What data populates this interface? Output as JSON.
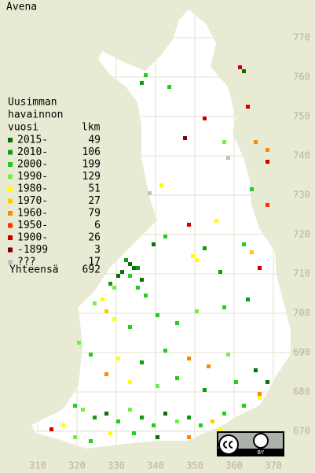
{
  "map": {
    "title": "Avena",
    "legend": {
      "heading": [
        "Uusimman",
        "havainnon",
        "vuosi"
      ],
      "count_heading": "lkm",
      "rows": [
        {
          "label": "2015-",
          "count": 49,
          "color": "#0a6e0a"
        },
        {
          "label": "2010-",
          "count": 106,
          "color": "#109c10"
        },
        {
          "label": "2000-",
          "count": 199,
          "color": "#22cc22"
        },
        {
          "label": "1990-",
          "count": 129,
          "color": "#77ee44"
        },
        {
          "label": "1980-",
          "count": 51,
          "color": "#ffff00"
        },
        {
          "label": "1970-",
          "count": 27,
          "color": "#ffcc00"
        },
        {
          "label": "1960-",
          "count": 79,
          "color": "#ff8800"
        },
        {
          "label": "1950-",
          "count": 6,
          "color": "#ff3300"
        },
        {
          "label": "1900-",
          "count": 26,
          "color": "#cc0000"
        },
        {
          "label": "-1899",
          "count": 3,
          "color": "#800000"
        },
        {
          "label": "???",
          "count": 17,
          "color": "#c0c0c0"
        }
      ],
      "total_label": "Yhteensä",
      "total": 692
    },
    "y_labels": [
      770,
      760,
      750,
      740,
      730,
      720,
      710,
      700,
      690,
      680,
      670
    ],
    "x_labels": [
      310,
      320,
      330,
      340,
      350,
      360,
      370
    ],
    "license": "BY",
    "squares": [
      [
        361,
        762,
        8
      ],
      [
        362,
        761,
        0
      ],
      [
        336,
        758,
        1
      ],
      [
        337,
        760,
        2
      ],
      [
        343,
        757,
        2
      ],
      [
        363,
        752,
        8
      ],
      [
        352,
        749,
        8
      ],
      [
        347,
        744,
        9
      ],
      [
        357,
        743,
        3
      ],
      [
        368,
        741,
        6
      ],
      [
        365,
        743,
        6
      ],
      [
        358,
        739,
        10
      ],
      [
        368,
        738,
        8
      ],
      [
        338,
        730,
        10
      ],
      [
        341,
        732,
        4
      ],
      [
        364,
        731,
        2
      ],
      [
        368,
        727,
        7
      ],
      [
        355,
        723,
        4
      ],
      [
        348,
        722,
        8
      ],
      [
        339,
        717,
        0
      ],
      [
        342,
        719,
        2
      ],
      [
        349,
        714,
        4
      ],
      [
        350,
        713,
        4
      ],
      [
        352,
        716,
        1
      ],
      [
        362,
        717,
        2
      ],
      [
        366,
        711,
        8
      ],
      [
        356,
        710,
        1
      ],
      [
        364,
        715,
        5
      ],
      [
        332,
        713,
        1
      ],
      [
        333,
        712,
        0
      ],
      [
        334,
        711,
        0
      ],
      [
        335,
        711,
        1
      ],
      [
        331,
        710,
        0
      ],
      [
        330,
        709,
        0
      ],
      [
        333,
        709,
        2
      ],
      [
        336,
        708,
        0
      ],
      [
        328,
        707,
        1
      ],
      [
        329,
        706,
        3
      ],
      [
        335,
        706,
        2
      ],
      [
        337,
        704,
        2
      ],
      [
        326,
        703,
        4
      ],
      [
        324,
        702,
        3
      ],
      [
        327,
        700,
        5
      ],
      [
        329,
        698,
        4
      ],
      [
        333,
        696,
        2
      ],
      [
        340,
        699,
        2
      ],
      [
        345,
        697,
        2
      ],
      [
        350,
        700,
        3
      ],
      [
        357,
        701,
        2
      ],
      [
        363,
        703,
        1
      ],
      [
        320,
        692,
        3
      ],
      [
        323,
        689,
        2
      ],
      [
        330,
        688,
        4
      ],
      [
        336,
        687,
        1
      ],
      [
        342,
        690,
        2
      ],
      [
        348,
        688,
        6
      ],
      [
        353,
        686,
        6
      ],
      [
        358,
        689,
        3
      ],
      [
        365,
        685,
        0
      ],
      [
        327,
        684,
        6
      ],
      [
        333,
        682,
        4
      ],
      [
        340,
        681,
        3
      ],
      [
        345,
        683,
        2
      ],
      [
        352,
        680,
        1
      ],
      [
        360,
        682,
        2
      ],
      [
        366,
        679,
        6
      ],
      [
        319,
        676,
        2
      ],
      [
        321,
        675,
        3
      ],
      [
        324,
        673,
        1
      ],
      [
        327,
        674,
        0
      ],
      [
        330,
        672,
        2
      ],
      [
        333,
        675,
        3
      ],
      [
        336,
        673,
        1
      ],
      [
        339,
        671,
        2
      ],
      [
        342,
        674,
        0
      ],
      [
        345,
        672,
        3
      ],
      [
        348,
        673,
        1
      ],
      [
        351,
        671,
        2
      ],
      [
        354,
        672,
        5
      ],
      [
        357,
        674,
        2
      ],
      [
        313,
        670,
        8
      ],
      [
        316,
        671,
        4
      ],
      [
        319,
        668,
        3
      ],
      [
        323,
        667,
        2
      ],
      [
        328,
        669,
        4
      ],
      [
        334,
        669,
        2
      ],
      [
        340,
        668,
        0
      ],
      [
        348,
        668,
        6
      ],
      [
        356,
        670,
        4
      ],
      [
        362,
        676,
        2
      ],
      [
        366,
        678,
        4
      ],
      [
        368,
        682,
        0
      ]
    ]
  }
}
